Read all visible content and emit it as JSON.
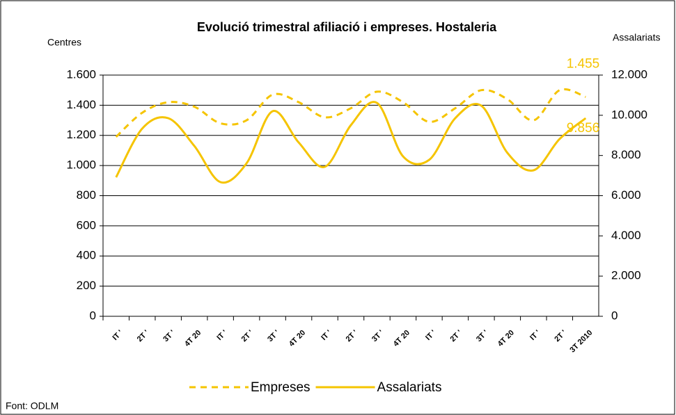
{
  "chart_data": {
    "type": "line",
    "title": "Evolució trimestral afiliació i empreses. Hostaleria",
    "ylabel": "Centres",
    "y2label": "Assalariats",
    "source": "Font: ODLM",
    "categories": [
      "IT '",
      "2T '",
      "3T '",
      "4T 20",
      "IT '",
      "2T '",
      "3T '",
      "4T 20",
      "IT '",
      "2T '",
      "3T '",
      "4T 20",
      "IT '",
      "2T '",
      "3T '",
      "4T 20",
      "IT '",
      "2T '",
      "3T 2010"
    ],
    "series": [
      {
        "name": "Empreses",
        "color": "#f5c400",
        "dash": true,
        "values": [
          1190,
          1350,
          1420,
          1390,
          1280,
          1300,
          1470,
          1420,
          1320,
          1380,
          1490,
          1420,
          1290,
          1380,
          1500,
          1440,
          1300,
          1500,
          1455
        ],
        "value_labels": [
          null,
          null,
          null,
          null,
          null,
          null,
          null,
          null,
          null,
          null,
          null,
          null,
          null,
          null,
          null,
          null,
          null,
          null,
          "1.455"
        ]
      },
      {
        "name": "Assalariats",
        "color": "#f5c400",
        "dash": false,
        "axis": "y2",
        "values": [
          6916,
          9337,
          9856,
          8473,
          6674,
          7608,
          10202,
          8646,
          7435,
          9510,
          10617,
          7954,
          7781,
          9856,
          10478,
          8127,
          7262,
          8819,
          9856
        ],
        "value_labels": [
          null,
          null,
          null,
          null,
          null,
          null,
          null,
          null,
          null,
          null,
          null,
          null,
          null,
          null,
          null,
          null,
          null,
          null,
          "9.856"
        ]
      }
    ],
    "ylim": [
      0,
      1600
    ],
    "yticks": [
      0,
      200,
      400,
      600,
      800,
      {
        "value": 1000,
        "label": "1.000"
      },
      {
        "value": 1200,
        "label": "1.200"
      },
      {
        "value": 1400,
        "label": "1.400"
      },
      {
        "value": 1600,
        "label": "1.600"
      }
    ],
    "y2lim": [
      0,
      12000
    ],
    "y2ticks": [
      0,
      {
        "value": 2000,
        "label": "2.000"
      },
      {
        "value": 4000,
        "label": "4.000"
      },
      {
        "value": 6000,
        "label": "6.000"
      },
      {
        "value": 8000,
        "label": "8.000"
      },
      {
        "value": 10000,
        "label": "10.000"
      },
      {
        "value": 12000,
        "label": "12.000"
      }
    ],
    "grid": true,
    "legend": "bottom"
  }
}
